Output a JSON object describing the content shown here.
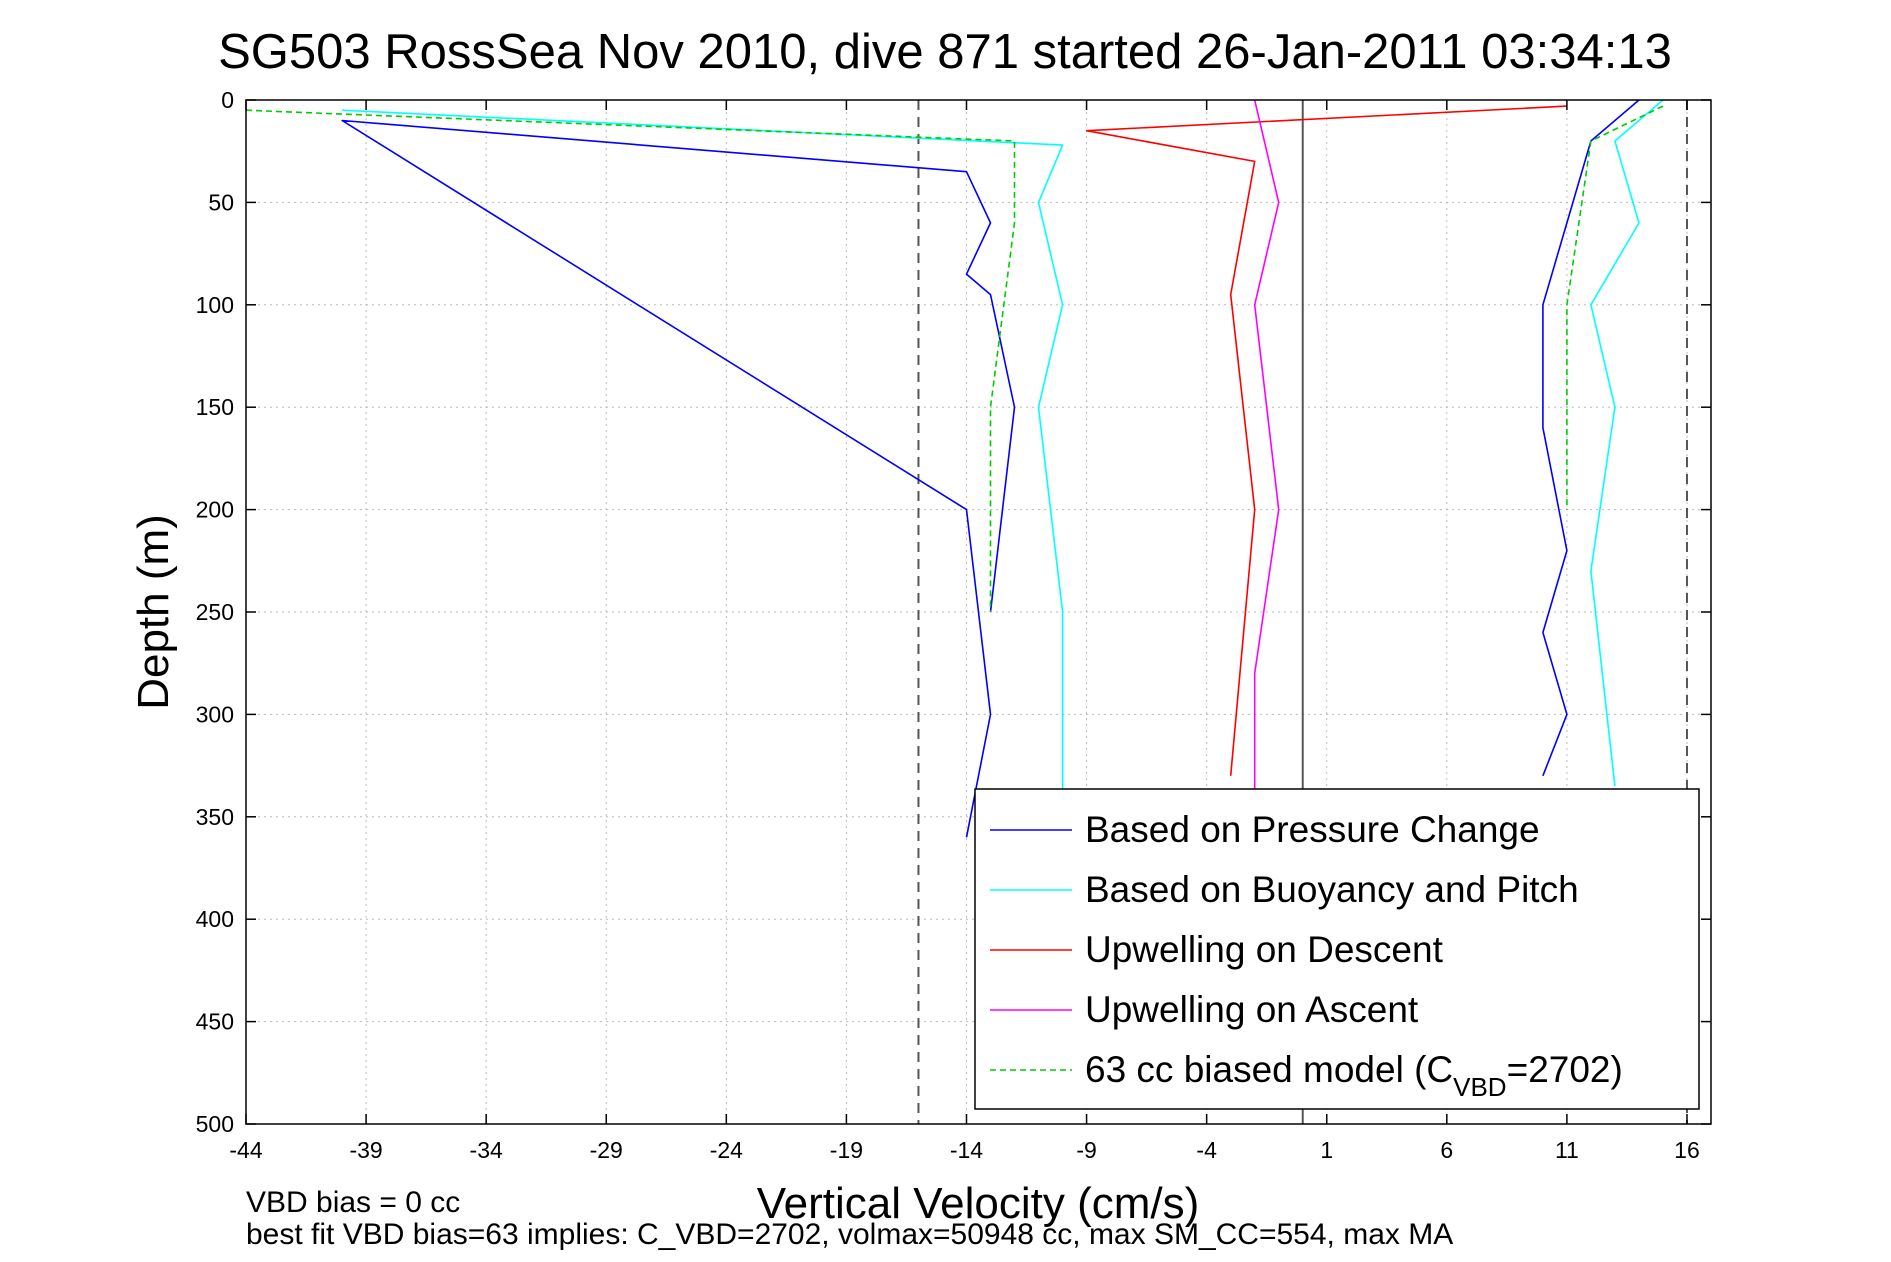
{
  "chart_data": {
    "type": "line",
    "title": "SG503 RossSea Nov 2010, dive 871 started 26-Jan-2011 03:34:13",
    "xlabel": "Vertical Velocity (cm/s)",
    "ylabel": "Depth (m)",
    "xlim": [
      -44,
      17
    ],
    "ylim": [
      0,
      500
    ],
    "y_reversed": true,
    "xticks": [
      -44,
      -39,
      -34,
      -29,
      -24,
      -19,
      -14,
      -9,
      -4,
      1,
      6,
      11,
      16
    ],
    "yticks": [
      0,
      50,
      100,
      150,
      200,
      250,
      300,
      350,
      400,
      450,
      500
    ],
    "grid": true,
    "legend_position": "bottom-right",
    "reference_lines": [
      {
        "x": -16,
        "style": "dashed",
        "color": "#555555"
      },
      {
        "x": 0,
        "style": "solid",
        "color": "#555555"
      },
      {
        "x": 16,
        "style": "dashed",
        "color": "#555555"
      }
    ],
    "series": [
      {
        "name": "Based on Pressure Change",
        "color": "#0000ff",
        "style": "solid",
        "segments": [
          {
            "x": [
              -14,
              -13,
              -14,
              -40,
              -14,
              -13,
              -14,
              -13,
              -12,
              -13
            ],
            "depth": [
              360,
              300,
              200,
              10,
              35,
              60,
              85,
              95,
              150,
              250
            ]
          },
          {
            "x": [
              14,
              12,
              11,
              10,
              10,
              11,
              10,
              11,
              10
            ],
            "depth": [
              0,
              20,
              60,
              100,
              160,
              220,
              260,
              300,
              330
            ]
          }
        ]
      },
      {
        "name": "Based on Buoyancy and Pitch",
        "color": "#00ffff",
        "style": "solid",
        "segments": [
          {
            "x": [
              -40,
              -10,
              -11,
              -10,
              -11,
              -10,
              -10
            ],
            "depth": [
              5,
              22,
              50,
              100,
              150,
              250,
              340
            ]
          },
          {
            "x": [
              15,
              13,
              14,
              12,
              13,
              12,
              13
            ],
            "depth": [
              0,
              20,
              60,
              100,
              150,
              230,
              335
            ]
          }
        ]
      },
      {
        "name": "Upwelling on Descent",
        "color": "#ff0000",
        "style": "solid",
        "segments": [
          {
            "x": [
              11,
              -9,
              -2,
              -3,
              -2,
              -3
            ],
            "depth": [
              3,
              15,
              30,
              95,
              200,
              330
            ]
          }
        ]
      },
      {
        "name": "Upwelling on Ascent",
        "color": "#ff00ff",
        "style": "solid",
        "segments": [
          {
            "x": [
              -2,
              -1,
              -2,
              -1,
              -2,
              -2
            ],
            "depth": [
              0,
              50,
              100,
              200,
              280,
              350
            ]
          }
        ]
      },
      {
        "name": "63 cc biased model (C",
        "name_sub": "VBD",
        "name_suffix": "=2702)",
        "color": "#00cc00",
        "style": "dashed",
        "segments": [
          {
            "x": [
              -44,
              -12,
              -12,
              -13,
              -13
            ],
            "depth": [
              5,
              20,
              60,
              150,
              250
            ]
          },
          {
            "x": [
              15,
              12,
              11,
              11
            ],
            "depth": [
              3,
              20,
              100,
              200
            ]
          }
        ]
      }
    ],
    "annotations": [
      "VBD bias = 0 cc",
      "best fit VBD bias=63 implies: C_VBD=2702, volmax=50948 cc, max SM_CC=554, max MA"
    ]
  }
}
